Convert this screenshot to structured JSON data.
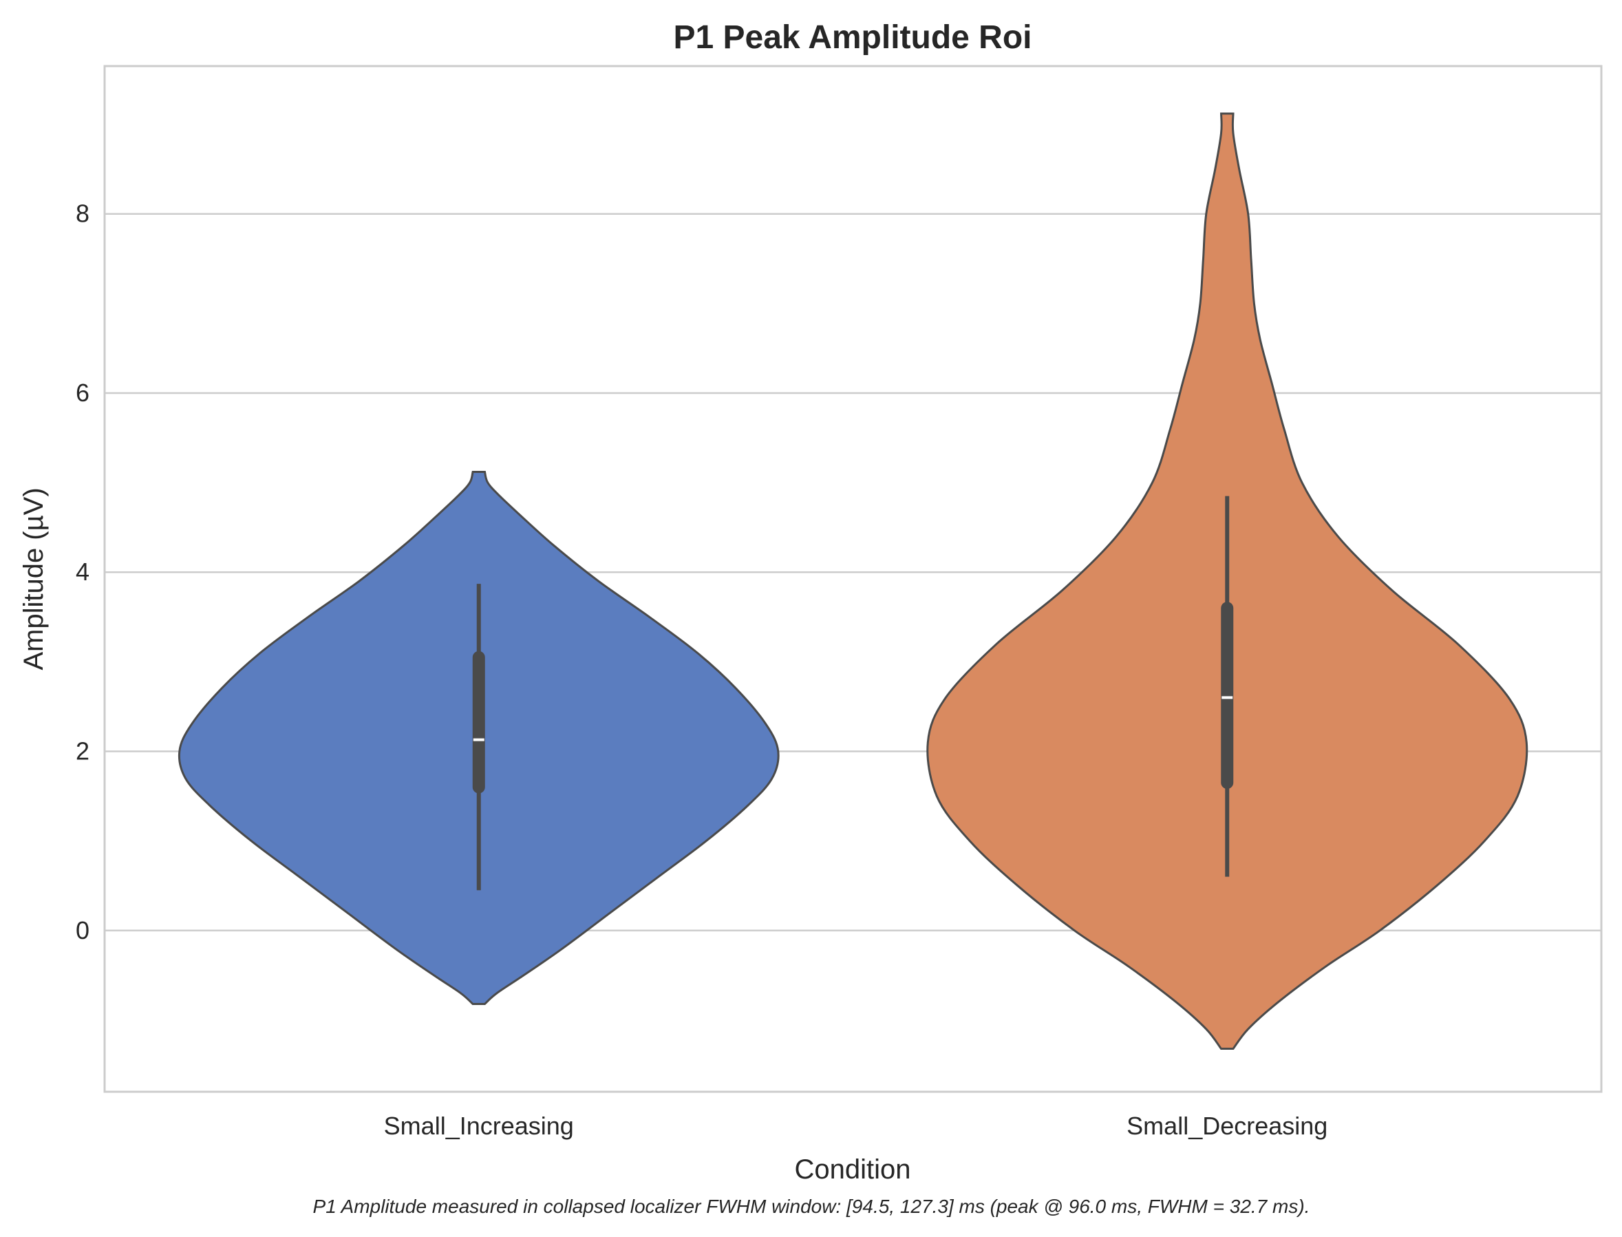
{
  "chart_data": {
    "type": "violin",
    "title": "P1 Peak Amplitude Roi",
    "xlabel": "Condition",
    "ylabel": "Amplitude (µV)",
    "caption": "P1 Amplitude measured in collapsed localizer FWHM window: [94.5, 127.3] ms (peak @ 96.0 ms, FWHM = 32.7 ms).",
    "ylim": [
      -1.8,
      9.65
    ],
    "yticks": [
      0,
      2,
      4,
      6,
      8
    ],
    "grid": true,
    "categories": [
      "Small_Increasing",
      "Small_Decreasing"
    ],
    "series": [
      {
        "category": "Small_Increasing",
        "color": "#5b7dbf",
        "min": -0.82,
        "max": 5.12,
        "whisker_low": 0.45,
        "whisker_high": 3.87,
        "q1": 1.6,
        "q3": 3.05,
        "median": 2.13,
        "density": [
          [
            -0.82,
            0.02
          ],
          [
            -0.7,
            0.06
          ],
          [
            -0.5,
            0.15
          ],
          [
            -0.2,
            0.28
          ],
          [
            0.2,
            0.44
          ],
          [
            0.6,
            0.6
          ],
          [
            1.0,
            0.76
          ],
          [
            1.4,
            0.9
          ],
          [
            1.7,
            0.98
          ],
          [
            2.0,
            1.0
          ],
          [
            2.3,
            0.96
          ],
          [
            2.7,
            0.86
          ],
          [
            3.1,
            0.73
          ],
          [
            3.5,
            0.57
          ],
          [
            3.9,
            0.4
          ],
          [
            4.3,
            0.25
          ],
          [
            4.6,
            0.15
          ],
          [
            4.85,
            0.07
          ],
          [
            5.0,
            0.03
          ],
          [
            5.12,
            0.02
          ]
        ]
      },
      {
        "category": "Small_Decreasing",
        "color": "#d98a60",
        "min": -1.32,
        "max": 9.12,
        "whisker_low": 0.6,
        "whisker_high": 4.85,
        "q1": 1.65,
        "q3": 3.6,
        "median": 2.6,
        "density": [
          [
            -1.32,
            0.02
          ],
          [
            -1.1,
            0.07
          ],
          [
            -0.8,
            0.17
          ],
          [
            -0.4,
            0.33
          ],
          [
            0.0,
            0.51
          ],
          [
            0.5,
            0.7
          ],
          [
            1.0,
            0.86
          ],
          [
            1.5,
            0.97
          ],
          [
            2.1,
            1.0
          ],
          [
            2.6,
            0.94
          ],
          [
            3.2,
            0.77
          ],
          [
            3.8,
            0.55
          ],
          [
            4.4,
            0.37
          ],
          [
            5.0,
            0.25
          ],
          [
            5.6,
            0.19
          ],
          [
            6.1,
            0.15
          ],
          [
            6.6,
            0.11
          ],
          [
            7.0,
            0.09
          ],
          [
            7.5,
            0.08
          ],
          [
            8.0,
            0.07
          ],
          [
            8.5,
            0.04
          ],
          [
            8.9,
            0.02
          ],
          [
            9.12,
            0.02
          ]
        ]
      }
    ]
  }
}
